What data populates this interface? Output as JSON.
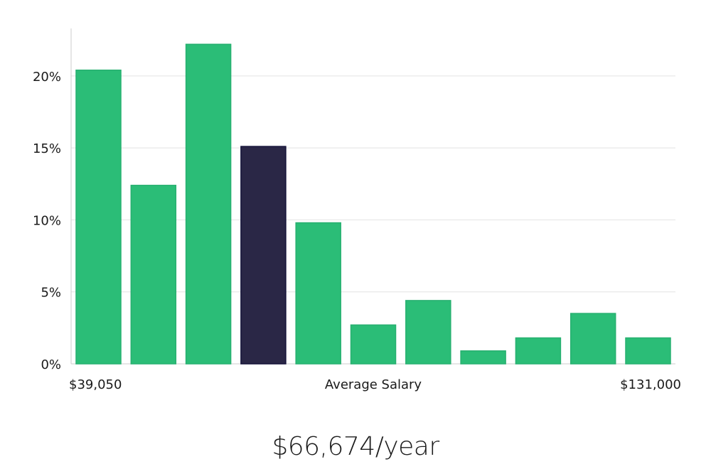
{
  "chart_data": {
    "type": "bar",
    "values": [
      20.4,
      12.4,
      22.2,
      15.1,
      9.8,
      2.7,
      4.4,
      0.9,
      1.8,
      3.5,
      1.8
    ],
    "highlight_index": 3,
    "ylim": [
      0,
      23.3
    ],
    "yticks": [
      0,
      5,
      10,
      15,
      20
    ],
    "ytick_labels": [
      "0%",
      "5%",
      "10%",
      "15%",
      "20%"
    ],
    "x_min_label": "$39,050",
    "xlabel": "Average Salary",
    "x_max_label": "$131,000",
    "grid": true,
    "colors": {
      "bar": "#2bbd77",
      "highlight": "#2a2746",
      "grid": "#e2e2e2",
      "axis": "#cccccc"
    }
  },
  "salary": {
    "value": "$66,674/year"
  }
}
